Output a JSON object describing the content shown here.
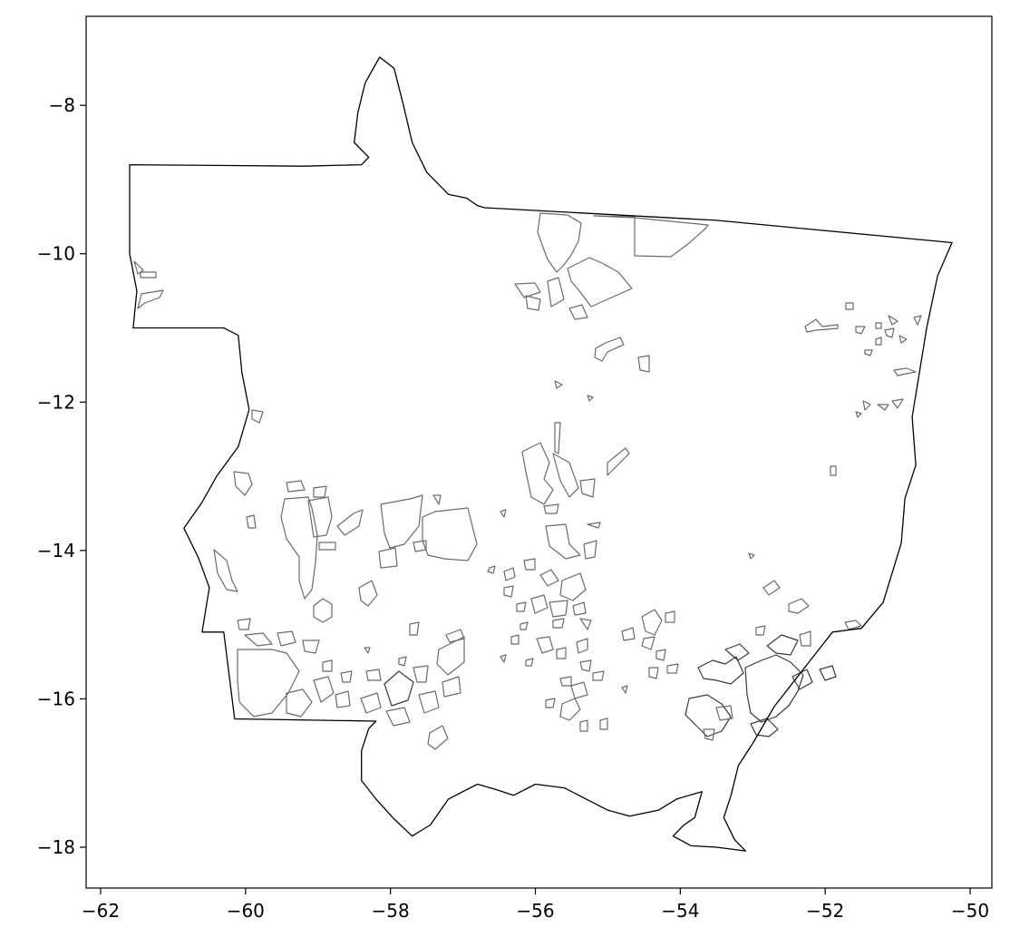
{
  "map": {
    "x_ticks": [
      {
        "value": -62,
        "label": "−62"
      },
      {
        "value": -60,
        "label": "−60"
      },
      {
        "value": -58,
        "label": "−58"
      },
      {
        "value": -56,
        "label": "−56"
      },
      {
        "value": -54,
        "label": "−54"
      },
      {
        "value": -52,
        "label": "−52"
      },
      {
        "value": -50,
        "label": "−50"
      }
    ],
    "y_ticks": [
      {
        "value": -8,
        "label": "−8"
      },
      {
        "value": -10,
        "label": "−10"
      },
      {
        "value": -12,
        "label": "−12"
      },
      {
        "value": -14,
        "label": "−14"
      },
      {
        "value": -16,
        "label": "−16"
      },
      {
        "value": -18,
        "label": "−18"
      }
    ],
    "xlim": [
      -62.2,
      -49.7
    ],
    "ylim": [
      -18.55,
      -6.8
    ],
    "colors": {
      "boundary": "#000000",
      "parcel": "#6b6b6b",
      "parcel_dense": "#3a3a3a",
      "background": "#ffffff"
    },
    "state_boundary": [
      [
        -61.6,
        -8.8
      ],
      [
        -59.2,
        -8.82
      ],
      [
        -58.4,
        -8.8
      ],
      [
        -58.3,
        -8.7
      ],
      [
        -58.5,
        -8.5
      ],
      [
        -58.45,
        -8.1
      ],
      [
        -58.35,
        -7.7
      ],
      [
        -58.15,
        -7.35
      ],
      [
        -57.95,
        -7.5
      ],
      [
        -57.82,
        -8.0
      ],
      [
        -57.7,
        -8.5
      ],
      [
        -57.5,
        -8.9
      ],
      [
        -57.2,
        -9.2
      ],
      [
        -56.95,
        -9.25
      ],
      [
        -56.8,
        -9.35
      ],
      [
        -56.7,
        -9.38
      ],
      [
        -53.5,
        -9.55
      ],
      [
        -50.25,
        -9.85
      ],
      [
        -50.45,
        -10.3
      ],
      [
        -50.6,
        -11.0
      ],
      [
        -50.7,
        -11.6
      ],
      [
        -50.8,
        -12.2
      ],
      [
        -50.75,
        -12.85
      ],
      [
        -50.9,
        -13.3
      ],
      [
        -50.95,
        -13.9
      ],
      [
        -51.2,
        -14.7
      ],
      [
        -51.5,
        -15.05
      ],
      [
        -51.9,
        -15.1
      ],
      [
        -52.3,
        -15.6
      ],
      [
        -52.7,
        -16.1
      ],
      [
        -53.0,
        -16.6
      ],
      [
        -53.2,
        -16.9
      ],
      [
        -53.3,
        -17.3
      ],
      [
        -53.4,
        -17.6
      ],
      [
        -53.25,
        -17.9
      ],
      [
        -53.1,
        -18.05
      ],
      [
        -53.5,
        -18.0
      ],
      [
        -53.85,
        -17.98
      ],
      [
        -54.1,
        -17.85
      ],
      [
        -53.95,
        -17.7
      ],
      [
        -53.8,
        -17.6
      ],
      [
        -53.7,
        -17.25
      ],
      [
        -54.05,
        -17.35
      ],
      [
        -54.3,
        -17.5
      ],
      [
        -54.7,
        -17.58
      ],
      [
        -55.0,
        -17.5
      ],
      [
        -55.3,
        -17.35
      ],
      [
        -55.6,
        -17.2
      ],
      [
        -56.0,
        -17.15
      ],
      [
        -56.3,
        -17.3
      ],
      [
        -56.55,
        -17.22
      ],
      [
        -56.8,
        -17.15
      ],
      [
        -57.2,
        -17.35
      ],
      [
        -57.45,
        -17.7
      ],
      [
        -57.7,
        -17.85
      ],
      [
        -57.95,
        -17.62
      ],
      [
        -58.2,
        -17.35
      ],
      [
        -58.4,
        -17.1
      ],
      [
        -58.4,
        -16.7
      ],
      [
        -58.3,
        -16.4
      ],
      [
        -58.2,
        -16.3
      ],
      [
        -60.15,
        -16.27
      ],
      [
        -60.3,
        -15.1
      ],
      [
        -60.6,
        -15.1
      ],
      [
        -60.5,
        -14.5
      ],
      [
        -60.65,
        -14.1
      ],
      [
        -60.85,
        -13.7
      ],
      [
        -60.6,
        -13.35
      ],
      [
        -60.4,
        -13.0
      ],
      [
        -60.1,
        -12.6
      ],
      [
        -59.95,
        -12.1
      ],
      [
        -60.05,
        -11.6
      ],
      [
        -60.1,
        -11.1
      ],
      [
        -60.3,
        -11.0
      ],
      [
        -61.55,
        -11.0
      ],
      [
        -61.5,
        -10.5
      ],
      [
        -61.6,
        -10.0
      ],
      [
        -61.6,
        -9.3
      ],
      [
        -61.6,
        -8.8
      ]
    ]
  }
}
